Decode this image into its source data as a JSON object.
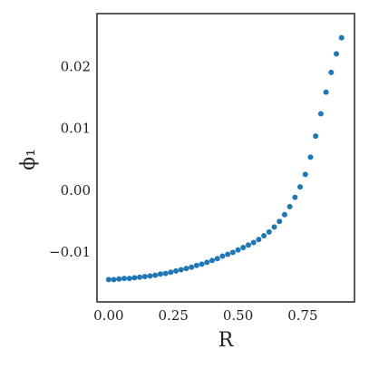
{
  "chart_data": {
    "type": "scatter",
    "xlabel": "R",
    "ylabel": "ϕ₁",
    "series": [
      {
        "color": "#1f77b4",
        "x": [
          0,
          0.02,
          0.04,
          0.06,
          0.08,
          0.1,
          0.12,
          0.14,
          0.16,
          0.18,
          0.2,
          0.22,
          0.24,
          0.26,
          0.28,
          0.3,
          0.32,
          0.34,
          0.36,
          0.38,
          0.4,
          0.42,
          0.44,
          0.46,
          0.48,
          0.5,
          0.52,
          0.54,
          0.56,
          0.58,
          0.6,
          0.62,
          0.64,
          0.66,
          0.68,
          0.7,
          0.72,
          0.74,
          0.76,
          0.78,
          0.8,
          0.82,
          0.84,
          0.86,
          0.88,
          0.9
        ],
        "values": [
          -0.0143,
          -0.0143,
          -0.0142,
          -0.0141,
          -0.0141,
          -0.014,
          -0.0139,
          -0.0138,
          -0.0137,
          -0.0136,
          -0.0134,
          -0.0133,
          -0.0131,
          -0.0129,
          -0.0127,
          -0.0125,
          -0.0123,
          -0.012,
          -0.0118,
          -0.0115,
          -0.0112,
          -0.0109,
          -0.0105,
          -0.0102,
          -0.0099,
          -0.0095,
          -0.0091,
          -0.0087,
          -0.0083,
          -0.0078,
          -0.0072,
          -0.0066,
          -0.0058,
          -0.0049,
          -0.0038,
          -0.0025,
          -0.001,
          0.0007,
          0.0027,
          0.0055,
          0.0089,
          0.0125,
          0.016,
          0.0192,
          0.0222,
          0.0248
        ]
      }
    ],
    "xlim": [
      -0.045,
      0.95
    ],
    "xticks": [
      {
        "value": 0,
        "label": "0.00"
      },
      {
        "value": 0.25,
        "label": "0.25"
      },
      {
        "value": 0.5,
        "label": "0.50"
      },
      {
        "value": 0.75,
        "label": "0.75"
      }
    ],
    "ylim": [
      -0.0179,
      0.0287
    ],
    "yticks": [
      {
        "value": -0.01,
        "label": "−0.01"
      },
      {
        "value": 0,
        "label": "0.00"
      },
      {
        "value": 0.01,
        "label": "0.01"
      },
      {
        "value": 0.02,
        "label": "0.02"
      }
    ],
    "grid": false
  }
}
